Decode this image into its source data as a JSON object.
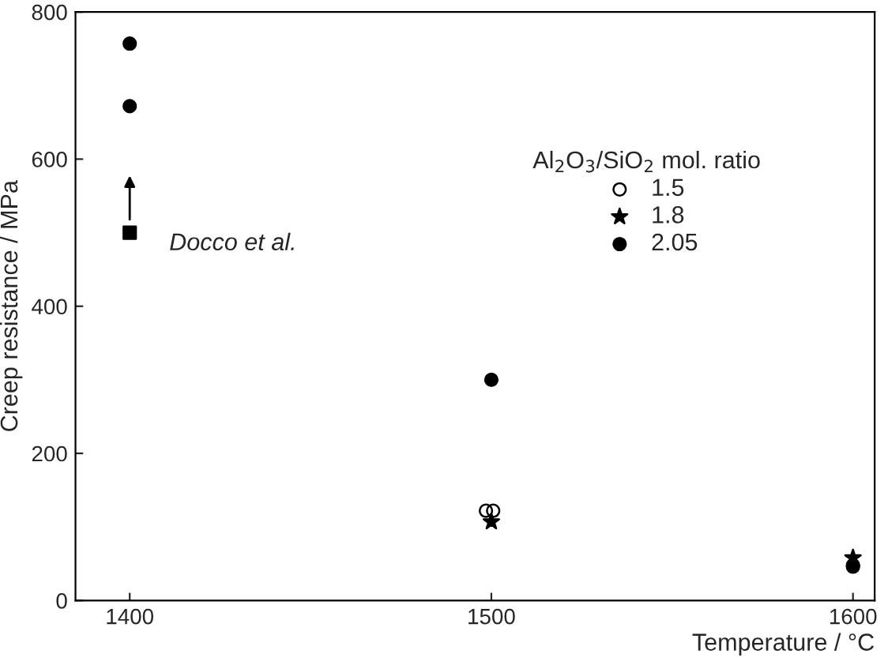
{
  "chart_data": {
    "type": "scatter",
    "xlabel": "Temperature / °C",
    "ylabel": "Creep resistance / MPa",
    "legend_title": "Al$_{2}$O$_{3}$/SiO$_{2}$ mol. ratio",
    "legend": "top right",
    "series": [
      {
        "name": "1.5",
        "color": "#000000",
        "marker": "circle_open",
        "x": [
          1498.5,
          1500.5,
          1600
        ],
        "values": [
          122,
          122,
          48
        ]
      },
      {
        "name": "1.8",
        "color": "#000000",
        "marker": "star",
        "x": [
          1500,
          1600
        ],
        "values": [
          107,
          58
        ]
      },
      {
        "name": "2.05",
        "color": "#000000",
        "marker": "circle",
        "x": [
          1400,
          1400,
          1500,
          1600
        ],
        "values": [
          757,
          672,
          300,
          46
        ]
      },
      {
        "color": "#000000",
        "marker": "square",
        "x": [
          1400
        ],
        "values": [
          500
        ]
      }
    ],
    "annotations": [
      {
        "text": "Docco et al.",
        "x": 1400,
        "y": 500
      }
    ],
    "xlim": [
      1385,
      1606
    ],
    "ylim": [
      0,
      800
    ],
    "xticks": [
      1400,
      1500,
      1600
    ],
    "yticks": [
      0,
      200,
      400,
      600,
      800
    ],
    "grid": false
  }
}
